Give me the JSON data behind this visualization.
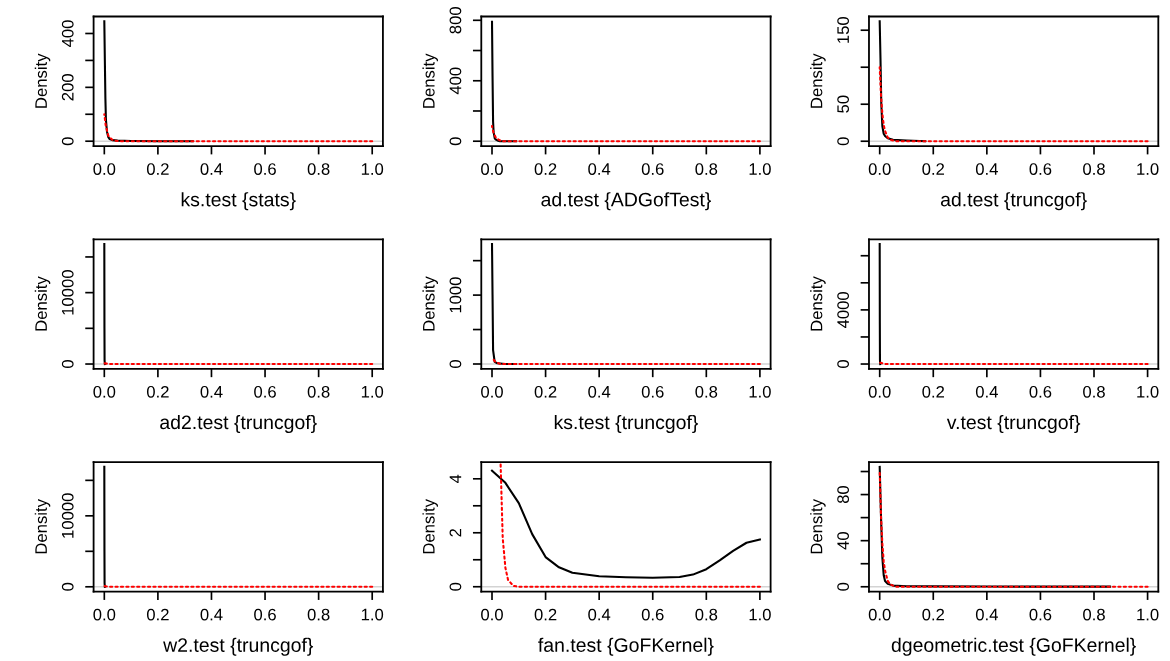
{
  "chart_data": [
    {
      "type": "line",
      "xlabel": "ks.test {stats}",
      "ylabel": "Density",
      "xlim": [
        -0.04,
        1.04
      ],
      "xticks": [
        {
          "value": 0,
          "label": "0.0"
        },
        {
          "value": 0.2,
          "label": "0.2"
        },
        {
          "value": 0.4,
          "label": "0.4"
        },
        {
          "value": 0.6,
          "label": "0.6"
        },
        {
          "value": 0.8,
          "label": "0.8"
        },
        {
          "value": 1.0,
          "label": "1.0"
        }
      ],
      "ylim": [
        -18,
        463
      ],
      "yticks": [
        0,
        {
          "value": 100,
          "label": null
        },
        200,
        {
          "value": 300,
          "label": null
        },
        400
      ],
      "ref_lines": [
        {
          "axis": "y",
          "value": 0,
          "color": "#d3d3d3"
        }
      ],
      "series": [
        {
          "color": "#000000",
          "line_style": "solid",
          "x": [
            0,
            0.002,
            0.004,
            0.006,
            0.01,
            0.015,
            0.02,
            0.03,
            0.05,
            0.1,
            0.2,
            0.33
          ],
          "values": [
            445,
            300,
            160,
            80,
            35,
            15,
            8,
            4,
            2,
            1,
            0,
            0
          ]
        },
        {
          "color": "#ff0000",
          "line_style": "dotted",
          "x": [
            0,
            0.005,
            0.01,
            0.015,
            0.02,
            0.03,
            0.04,
            0.05,
            0.06,
            0.08,
            0.1,
            0.2,
            0.4,
            0.6,
            0.8,
            1.0
          ],
          "values": [
            100,
            60,
            40,
            20,
            15,
            5,
            2,
            1,
            0,
            0,
            0,
            0,
            0,
            0,
            0,
            0
          ]
        }
      ]
    },
    {
      "type": "line",
      "xlabel": "ad.test {ADGofTest}",
      "ylabel": "Density",
      "xlim": [
        -0.04,
        1.04
      ],
      "xticks": [
        {
          "value": 0,
          "label": "0.0"
        },
        {
          "value": 0.2,
          "label": "0.2"
        },
        {
          "value": 0.4,
          "label": "0.4"
        },
        {
          "value": 0.6,
          "label": "0.6"
        },
        {
          "value": 0.8,
          "label": "0.8"
        },
        {
          "value": 1.0,
          "label": "1.0"
        }
      ],
      "ylim": [
        -32,
        825
      ],
      "yticks": [
        0,
        {
          "value": 200,
          "label": null
        },
        400,
        {
          "value": 600,
          "label": null
        },
        800
      ],
      "ref_lines": [
        {
          "axis": "y",
          "value": 0,
          "color": "#d3d3d3"
        }
      ],
      "series": [
        {
          "color": "#000000",
          "line_style": "solid",
          "x": [
            0,
            0.002,
            0.004,
            0.006,
            0.01,
            0.015,
            0.02,
            0.03,
            0.05,
            0.09
          ],
          "values": [
            790,
            430,
            130,
            60,
            20,
            10,
            5,
            0,
            0,
            0
          ]
        },
        {
          "color": "#ff0000",
          "line_style": "dotted",
          "x": [
            0,
            0.005,
            0.01,
            0.015,
            0.02,
            0.03,
            0.04,
            0.05,
            0.06,
            0.08,
            0.1,
            0.2,
            0.4,
            0.6,
            0.8,
            1.0
          ],
          "values": [
            100,
            60,
            40,
            20,
            15,
            5,
            0,
            0,
            0,
            0,
            0,
            0,
            0,
            0,
            0,
            0
          ]
        }
      ]
    },
    {
      "type": "line",
      "xlabel": "ad.test {truncgof}",
      "ylabel": "Density",
      "xlim": [
        -0.04,
        1.04
      ],
      "xticks": [
        {
          "value": 0,
          "label": "0.0"
        },
        {
          "value": 0.2,
          "label": "0.2"
        },
        {
          "value": 0.4,
          "label": "0.4"
        },
        {
          "value": 0.6,
          "label": "0.6"
        },
        {
          "value": 0.8,
          "label": "0.8"
        },
        {
          "value": 1.0,
          "label": "1.0"
        }
      ],
      "ylim": [
        -6.5,
        168.5
      ],
      "yticks": [
        0,
        50,
        {
          "value": 100,
          "label": null
        },
        150
      ],
      "ref_lines": [
        {
          "axis": "y",
          "value": 0,
          "color": "#d3d3d3"
        }
      ],
      "series": [
        {
          "color": "#000000",
          "line_style": "solid",
          "x": [
            0,
            0.003,
            0.006,
            0.01,
            0.015,
            0.02,
            0.03,
            0.05,
            0.1,
            0.17
          ],
          "values": [
            162,
            110,
            50,
            20,
            10,
            7,
            4,
            2,
            1,
            0
          ]
        },
        {
          "color": "#ff0000",
          "line_style": "dotted",
          "x": [
            0,
            0.005,
            0.01,
            0.015,
            0.02,
            0.03,
            0.04,
            0.05,
            0.06,
            0.08,
            0.1,
            0.2,
            0.4,
            0.6,
            0.8,
            1.0
          ],
          "values": [
            100,
            61,
            37,
            22,
            14,
            5,
            2,
            1,
            0,
            0,
            0,
            0,
            0,
            0,
            0,
            0
          ]
        }
      ]
    },
    {
      "type": "line",
      "xlabel": "ad2.test {truncgof}",
      "ylabel": "Density",
      "xlim": [
        -0.04,
        1.04
      ],
      "xticks": [
        {
          "value": 0,
          "label": "0.0"
        },
        {
          "value": 0.2,
          "label": "0.2"
        },
        {
          "value": 0.4,
          "label": "0.4"
        },
        {
          "value": 0.6,
          "label": "0.6"
        },
        {
          "value": 0.8,
          "label": "0.8"
        },
        {
          "value": 1.0,
          "label": "1.0"
        }
      ],
      "ylim": [
        -672,
        17472
      ],
      "yticks": [
        0,
        {
          "value": 5000,
          "label": null
        },
        10000,
        {
          "value": 15000,
          "label": null
        }
      ],
      "ref_lines": [
        {
          "axis": "y",
          "value": 0,
          "color": "#d3d3d3"
        }
      ],
      "series": [
        {
          "color": "#000000",
          "line_style": "solid",
          "x": [
            0,
            0.0005,
            0.001,
            0.002
          ],
          "values": [
            16800,
            5000,
            500,
            0
          ]
        },
        {
          "color": "#ff0000",
          "line_style": "dotted",
          "x": [
            0,
            0.02,
            0.1,
            0.2,
            0.4,
            0.6,
            0.8,
            1.0
          ],
          "values": [
            100,
            0,
            0,
            0,
            0,
            0,
            0,
            0
          ]
        }
      ]
    },
    {
      "type": "line",
      "xlabel": "ks.test {truncgof}",
      "ylabel": "Density",
      "xlim": [
        -0.04,
        1.04
      ],
      "xticks": [
        {
          "value": 0,
          "label": "0.0"
        },
        {
          "value": 0.2,
          "label": "0.2"
        },
        {
          "value": 0.4,
          "label": "0.4"
        },
        {
          "value": 0.6,
          "label": "0.6"
        },
        {
          "value": 0.8,
          "label": "0.8"
        },
        {
          "value": 1.0,
          "label": "1.0"
        }
      ],
      "ylim": [
        -70,
        1810
      ],
      "yticks": [
        0,
        {
          "value": 500,
          "label": null
        },
        1000,
        {
          "value": 1500,
          "label": null
        }
      ],
      "ref_lines": [
        {
          "axis": "y",
          "value": 0,
          "color": "#d3d3d3"
        }
      ],
      "series": [
        {
          "color": "#000000",
          "line_style": "solid",
          "x": [
            0,
            0.002,
            0.004,
            0.01,
            0.02,
            0.05,
            0.09
          ],
          "values": [
            1740,
            1000,
            200,
            30,
            10,
            0,
            0
          ]
        },
        {
          "color": "#ff0000",
          "line_style": "dotted",
          "x": [
            0,
            0.01,
            0.03,
            0.05,
            0.1,
            0.2,
            0.4,
            0.6,
            0.8,
            1.0
          ],
          "values": [
            100,
            40,
            0,
            0,
            0,
            0,
            0,
            0,
            0,
            0
          ]
        }
      ]
    },
    {
      "type": "line",
      "xlabel": "v.test {truncgof}",
      "ylabel": "Density",
      "xlim": [
        -0.04,
        1.04
      ],
      "xticks": [
        {
          "value": 0,
          "label": "0.0"
        },
        {
          "value": 0.2,
          "label": "0.2"
        },
        {
          "value": 0.4,
          "label": "0.4"
        },
        {
          "value": 0.6,
          "label": "0.6"
        },
        {
          "value": 0.8,
          "label": "0.8"
        },
        {
          "value": 1.0,
          "label": "1.0"
        }
      ],
      "ylim": [
        -354,
        9214
      ],
      "yticks": [
        0,
        {
          "value": 2000,
          "label": null
        },
        4000,
        {
          "value": 6000,
          "label": null
        },
        {
          "value": 8000,
          "label": null
        }
      ],
      "ref_lines": [
        {
          "axis": "y",
          "value": 0,
          "color": "#d3d3d3"
        }
      ],
      "series": [
        {
          "color": "#000000",
          "line_style": "solid",
          "x": [
            0,
            0.0005,
            0.001,
            0.002
          ],
          "values": [
            8860,
            3000,
            300,
            0
          ]
        },
        {
          "color": "#ff0000",
          "line_style": "dotted",
          "x": [
            0,
            0.02,
            0.1,
            0.2,
            0.4,
            0.6,
            0.8,
            1.0
          ],
          "values": [
            100,
            0,
            0,
            0,
            0,
            0,
            0,
            0
          ]
        }
      ]
    },
    {
      "type": "line",
      "xlabel": "w2.test {truncgof}",
      "ylabel": "Density",
      "xlim": [
        -0.04,
        1.04
      ],
      "xticks": [
        {
          "value": 0,
          "label": "0.0"
        },
        {
          "value": 0.2,
          "label": "0.2"
        },
        {
          "value": 0.4,
          "label": "0.4"
        },
        {
          "value": 0.6,
          "label": "0.6"
        },
        {
          "value": 0.8,
          "label": "0.8"
        },
        {
          "value": 1.0,
          "label": "1.0"
        }
      ],
      "ylim": [
        -676,
        17576
      ],
      "yticks": [
        0,
        {
          "value": 5000,
          "label": null
        },
        10000,
        {
          "value": 15000,
          "label": null
        }
      ],
      "ref_lines": [
        {
          "axis": "y",
          "value": 0,
          "color": "#d3d3d3"
        }
      ],
      "series": [
        {
          "color": "#000000",
          "line_style": "solid",
          "x": [
            0,
            0.0005,
            0.001,
            0.002
          ],
          "values": [
            16900,
            5000,
            500,
            0
          ]
        },
        {
          "color": "#ff0000",
          "line_style": "dotted",
          "x": [
            0,
            0.02,
            0.1,
            0.2,
            0.4,
            0.6,
            0.8,
            1.0
          ],
          "values": [
            100,
            0,
            0,
            0,
            0,
            0,
            0,
            0
          ]
        }
      ]
    },
    {
      "type": "line",
      "xlabel": "fan.test {GoFKernel}",
      "ylabel": "Density",
      "xlim": [
        -0.04,
        1.04
      ],
      "xticks": [
        {
          "value": 0,
          "label": "0.0"
        },
        {
          "value": 0.2,
          "label": "0.2"
        },
        {
          "value": 0.4,
          "label": "0.4"
        },
        {
          "value": 0.6,
          "label": "0.6"
        },
        {
          "value": 0.8,
          "label": "0.8"
        },
        {
          "value": 1.0,
          "label": "1.0"
        }
      ],
      "ylim": [
        -0.18,
        4.62
      ],
      "yticks": [
        0,
        {
          "value": 1,
          "label": null
        },
        2,
        {
          "value": 3,
          "label": null
        },
        4
      ],
      "ref_lines": [
        {
          "axis": "y",
          "value": 0,
          "color": "#d3d3d3"
        }
      ],
      "series": [
        {
          "color": "#000000",
          "line_style": "solid",
          "x": [
            0,
            0.05,
            0.1,
            0.15,
            0.2,
            0.25,
            0.3,
            0.4,
            0.5,
            0.6,
            0.7,
            0.75,
            0.8,
            0.85,
            0.9,
            0.95,
            1.0
          ],
          "values": [
            4.3,
            3.85,
            3.1,
            1.95,
            1.1,
            0.72,
            0.52,
            0.39,
            0.35,
            0.33,
            0.36,
            0.45,
            0.65,
            0.98,
            1.33,
            1.63,
            1.75
          ]
        },
        {
          "color": "#ff0000",
          "line_style": "dotted",
          "x": [
            0.032,
            0.04,
            0.05,
            0.06,
            0.08,
            0.1,
            0.2,
            0.4,
            0.6,
            0.8,
            1.0
          ],
          "values": [
            4.6,
            1.8,
            0.7,
            0.25,
            0.03,
            0,
            0,
            0,
            0,
            0,
            0
          ]
        }
      ]
    },
    {
      "type": "line",
      "xlabel": "dgeometric.test {GoFKernel}",
      "ylabel": "Density",
      "xlim": [
        -0.04,
        1.04
      ],
      "xticks": [
        {
          "value": 0,
          "label": "0.0"
        },
        {
          "value": 0.2,
          "label": "0.2"
        },
        {
          "value": 0.4,
          "label": "0.4"
        },
        {
          "value": 0.6,
          "label": "0.6"
        },
        {
          "value": 0.8,
          "label": "0.8"
        },
        {
          "value": 1.0,
          "label": "1.0"
        }
      ],
      "ylim": [
        -4.2,
        108.2
      ],
      "yticks": [
        0,
        {
          "value": 20,
          "label": null
        },
        40,
        {
          "value": 60,
          "label": null
        },
        80,
        {
          "value": 100,
          "label": null
        }
      ],
      "ref_lines": [
        {
          "axis": "y",
          "value": 0,
          "color": "#d3d3d3"
        }
      ],
      "series": [
        {
          "color": "#000000",
          "line_style": "solid",
          "x": [
            0,
            0.005,
            0.01,
            0.015,
            0.02,
            0.03,
            0.05,
            0.1,
            0.2,
            0.4,
            0.6,
            0.86
          ],
          "values": [
            104,
            60,
            25,
            10,
            5,
            2.5,
            1,
            0.5,
            0.3,
            0.2,
            0.1,
            0.1
          ]
        },
        {
          "color": "#ff0000",
          "line_style": "dotted",
          "x": [
            0,
            0.005,
            0.01,
            0.015,
            0.02,
            0.03,
            0.04,
            0.05,
            0.06,
            0.08,
            0.1,
            0.2,
            0.4,
            0.6,
            0.8,
            1.0
          ],
          "values": [
            100,
            61,
            37,
            22,
            14,
            5,
            2,
            1,
            0,
            0,
            0,
            0,
            0,
            0,
            0,
            0
          ]
        }
      ]
    }
  ]
}
